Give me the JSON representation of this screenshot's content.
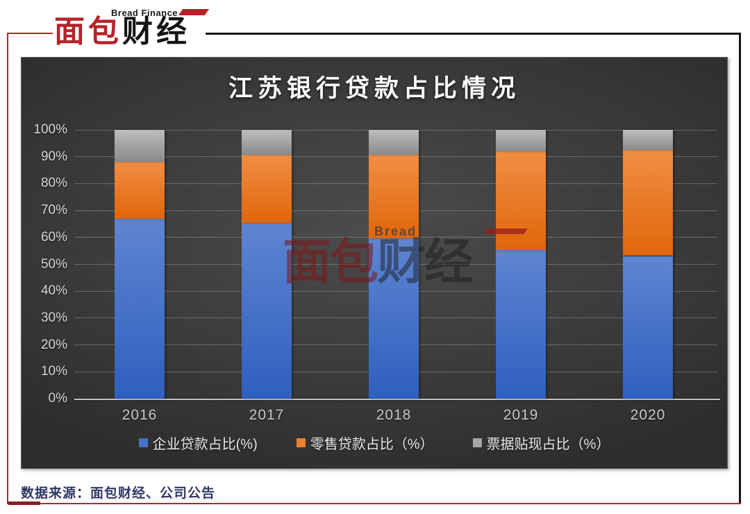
{
  "page": {
    "logo": {
      "brand_en": "Bread Finance",
      "brand_zh_1": "面包",
      "brand_zh_2": "财经"
    },
    "watermark": {
      "small_text": "Bread Finance",
      "zh_1": "面包",
      "zh_2": "财经"
    },
    "source_note": "数据来源：面包财经、公司公告"
  },
  "chart_data": {
    "type": "bar",
    "stacked": true,
    "title": "江苏银行贷款占比情况",
    "categories": [
      "2016",
      "2017",
      "2018",
      "2019",
      "2020"
    ],
    "series": [
      {
        "name": "企业贷款占比(%)",
        "color": "#4472C4",
        "gradient": [
          "#5e85d1",
          "#2f5fbe"
        ],
        "values": [
          66.9,
          65.4,
          59.7,
          55.2,
          53.1
        ]
      },
      {
        "name": "零售贷款占比（%）",
        "color": "#ED7D31",
        "gradient": [
          "#f08e44",
          "#e0660a"
        ],
        "values": [
          21.2,
          25.3,
          31.0,
          36.8,
          39.4
        ]
      },
      {
        "name": "票据贴现占比（%）",
        "color": "#A5A5A5",
        "gradient": [
          "#bdbdbd",
          "#8a8a8a"
        ],
        "values": [
          11.9,
          9.3,
          9.3,
          8.0,
          7.5
        ]
      }
    ],
    "y_ticks": [
      "0%",
      "10%",
      "20%",
      "30%",
      "40%",
      "50%",
      "60%",
      "70%",
      "80%",
      "90%",
      "100%"
    ],
    "ylim": [
      0,
      100
    ],
    "grid": true,
    "legend_position": "bottom"
  }
}
